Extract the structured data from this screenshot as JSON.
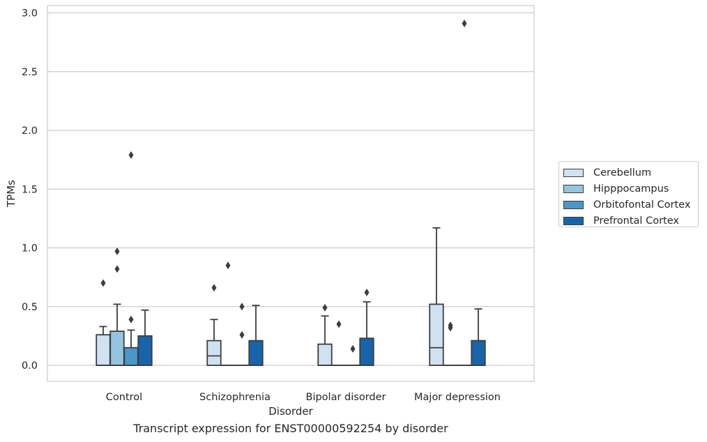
{
  "chart_data": {
    "type": "box",
    "xlabel": "Disorder",
    "ylabel": "TPMs",
    "caption": "Transcript expression for ENST00000592254 by disorder",
    "ylim": [
      -0.14,
      3.07
    ],
    "yticks": [
      "0.0",
      "0.5",
      "1.0",
      "1.5",
      "2.0",
      "2.5",
      "3.0"
    ],
    "ytick_values": [
      0.0,
      0.5,
      1.0,
      1.5,
      2.0,
      2.5,
      3.0
    ],
    "grid": "horizontal",
    "legend_position": "right",
    "categories": [
      "Control",
      "Schizophrenia",
      "Bipolar disorder",
      "Major depression"
    ],
    "series": [
      {
        "name": "Cerebellum",
        "color": "#d0e1f2",
        "boxes": [
          {
            "q1": 0.0,
            "median": 0.0,
            "q3": 0.26,
            "whislo": 0.0,
            "whishi": 0.33,
            "fliers": [
              0.7
            ]
          },
          {
            "q1": 0.0,
            "median": 0.08,
            "q3": 0.21,
            "whislo": 0.0,
            "whishi": 0.39,
            "fliers": [
              0.66
            ]
          },
          {
            "q1": 0.0,
            "median": 0.0,
            "q3": 0.18,
            "whislo": 0.0,
            "whishi": 0.42,
            "fliers": [
              0.49
            ]
          },
          {
            "q1": 0.0,
            "median": 0.15,
            "q3": 0.52,
            "whislo": 0.0,
            "whishi": 1.17,
            "fliers": []
          }
        ]
      },
      {
        "name": "Hipppocampus",
        "color": "#94c4df",
        "boxes": [
          {
            "q1": 0.0,
            "median": 0.0,
            "q3": 0.29,
            "whislo": 0.0,
            "whishi": 0.52,
            "fliers": [
              0.82,
              0.97
            ]
          },
          {
            "q1": 0.0,
            "median": 0.0,
            "q3": 0.0,
            "whislo": 0.0,
            "whishi": 0.0,
            "fliers": [
              0.85
            ]
          },
          {
            "q1": 0.0,
            "median": 0.0,
            "q3": 0.0,
            "whislo": 0.0,
            "whishi": 0.0,
            "fliers": [
              0.35
            ]
          },
          {
            "q1": 0.0,
            "median": 0.0,
            "q3": 0.0,
            "whislo": 0.0,
            "whishi": 0.0,
            "fliers": [
              0.32,
              0.34
            ]
          }
        ]
      },
      {
        "name": "Orbitofontal Cortex",
        "color": "#4a98c9",
        "boxes": [
          {
            "q1": 0.0,
            "median": 0.0,
            "q3": 0.15,
            "whislo": 0.0,
            "whishi": 0.3,
            "fliers": [
              0.39,
              1.79
            ]
          },
          {
            "q1": 0.0,
            "median": 0.0,
            "q3": 0.0,
            "whislo": 0.0,
            "whishi": 0.0,
            "fliers": [
              0.26,
              0.5
            ]
          },
          {
            "q1": 0.0,
            "median": 0.0,
            "q3": 0.0,
            "whislo": 0.0,
            "whishi": 0.0,
            "fliers": [
              0.14
            ]
          },
          {
            "q1": 0.0,
            "median": 0.0,
            "q3": 0.0,
            "whislo": 0.0,
            "whishi": 0.0,
            "fliers": [
              2.91
            ]
          }
        ]
      },
      {
        "name": "Prefrontal Cortex",
        "color": "#1764ab",
        "boxes": [
          {
            "q1": 0.0,
            "median": 0.0,
            "q3": 0.25,
            "whislo": 0.0,
            "whishi": 0.47,
            "fliers": []
          },
          {
            "q1": 0.0,
            "median": 0.0,
            "q3": 0.21,
            "whislo": 0.0,
            "whishi": 0.51,
            "fliers": []
          },
          {
            "q1": 0.0,
            "median": 0.0,
            "q3": 0.23,
            "whislo": 0.0,
            "whishi": 0.54,
            "fliers": [
              0.62
            ]
          },
          {
            "q1": 0.0,
            "median": 0.0,
            "q3": 0.21,
            "whislo": 0.0,
            "whishi": 0.48,
            "fliers": []
          }
        ]
      }
    ]
  }
}
